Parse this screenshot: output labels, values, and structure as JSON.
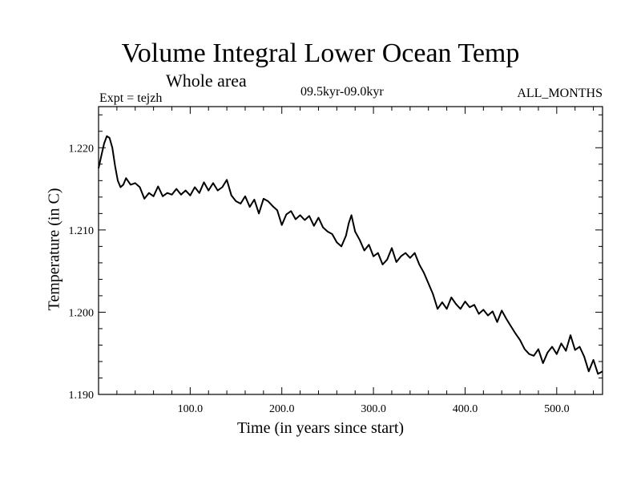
{
  "chart_data": {
    "type": "line",
    "title": "Volume Integral Lower Ocean Temp",
    "subtitle": "Whole area",
    "experiment": "Expt = tejzh",
    "period": "09.5kyr-09.0kyr",
    "months": "ALL_MONTHS",
    "xlabel": "Time (in years since start)",
    "ylabel": "Temperature (in C)",
    "xlim": [
      0,
      550
    ],
    "ylim": [
      1.19,
      1.225
    ],
    "xticks": [
      100,
      200,
      300,
      400,
      500
    ],
    "xtick_labels": [
      "100.0",
      "200.0",
      "300.0",
      "400.0",
      "500.0"
    ],
    "yticks": [
      1.19,
      1.2,
      1.21,
      1.22
    ],
    "ytick_labels": [
      "1.190",
      "1.200",
      "1.210",
      "1.220"
    ],
    "series": [
      {
        "name": "tejzh",
        "x": [
          0,
          3,
          6,
          9,
          12,
          15,
          18,
          21,
          24,
          27,
          30,
          35,
          40,
          45,
          50,
          55,
          60,
          65,
          70,
          75,
          80,
          85,
          90,
          95,
          100,
          105,
          110,
          115,
          120,
          125,
          130,
          135,
          140,
          145,
          150,
          155,
          160,
          165,
          170,
          175,
          180,
          185,
          190,
          195,
          200,
          205,
          210,
          215,
          220,
          225,
          230,
          235,
          240,
          245,
          250,
          255,
          260,
          265,
          270,
          273,
          276,
          280,
          285,
          290,
          295,
          300,
          305,
          310,
          315,
          320,
          325,
          330,
          335,
          340,
          345,
          350,
          355,
          360,
          365,
          370,
          375,
          380,
          385,
          390,
          395,
          400,
          405,
          410,
          415,
          420,
          425,
          430,
          435,
          440,
          445,
          450,
          455,
          460,
          465,
          470,
          475,
          480,
          485,
          490,
          495,
          500,
          505,
          510,
          515,
          520,
          525,
          530,
          535,
          540,
          545,
          550
        ],
        "values": [
          1.2175,
          1.219,
          1.2205,
          1.2214,
          1.2212,
          1.22,
          1.2178,
          1.216,
          1.2152,
          1.2155,
          1.2163,
          1.2155,
          1.2157,
          1.2152,
          1.2138,
          1.2145,
          1.2141,
          1.2153,
          1.2141,
          1.2145,
          1.2143,
          1.215,
          1.2143,
          1.2148,
          1.2142,
          1.2152,
          1.2145,
          1.2158,
          1.2148,
          1.2157,
          1.2148,
          1.2152,
          1.2161,
          1.2142,
          1.2135,
          1.2132,
          1.2141,
          1.2128,
          1.2137,
          1.212,
          1.2138,
          1.2135,
          1.2129,
          1.2124,
          1.2106,
          1.2119,
          1.2123,
          1.2113,
          1.2118,
          1.2112,
          1.2117,
          1.2105,
          1.2115,
          1.2103,
          1.2098,
          1.2095,
          1.2085,
          1.208,
          1.2093,
          1.2108,
          1.2118,
          1.2098,
          1.2088,
          1.2075,
          1.2082,
          1.2068,
          1.2072,
          1.2058,
          1.2064,
          1.2078,
          1.2061,
          1.2068,
          1.2072,
          1.2066,
          1.2072,
          1.2058,
          1.2048,
          1.2035,
          1.2022,
          1.2004,
          1.2012,
          1.2004,
          1.2018,
          1.201,
          1.2004,
          1.2013,
          1.2006,
          1.2009,
          1.1998,
          1.2003,
          1.1996,
          1.2001,
          1.1988,
          1.2002,
          1.1992,
          1.1983,
          1.1974,
          1.1966,
          1.1955,
          1.1949,
          1.1947,
          1.1955,
          1.1938,
          1.1951,
          1.1958,
          1.1949,
          1.1962,
          1.1953,
          1.1972,
          1.1954,
          1.1958,
          1.1946,
          1.1928,
          1.1942,
          1.1925,
          1.1928
        ]
      }
    ]
  }
}
